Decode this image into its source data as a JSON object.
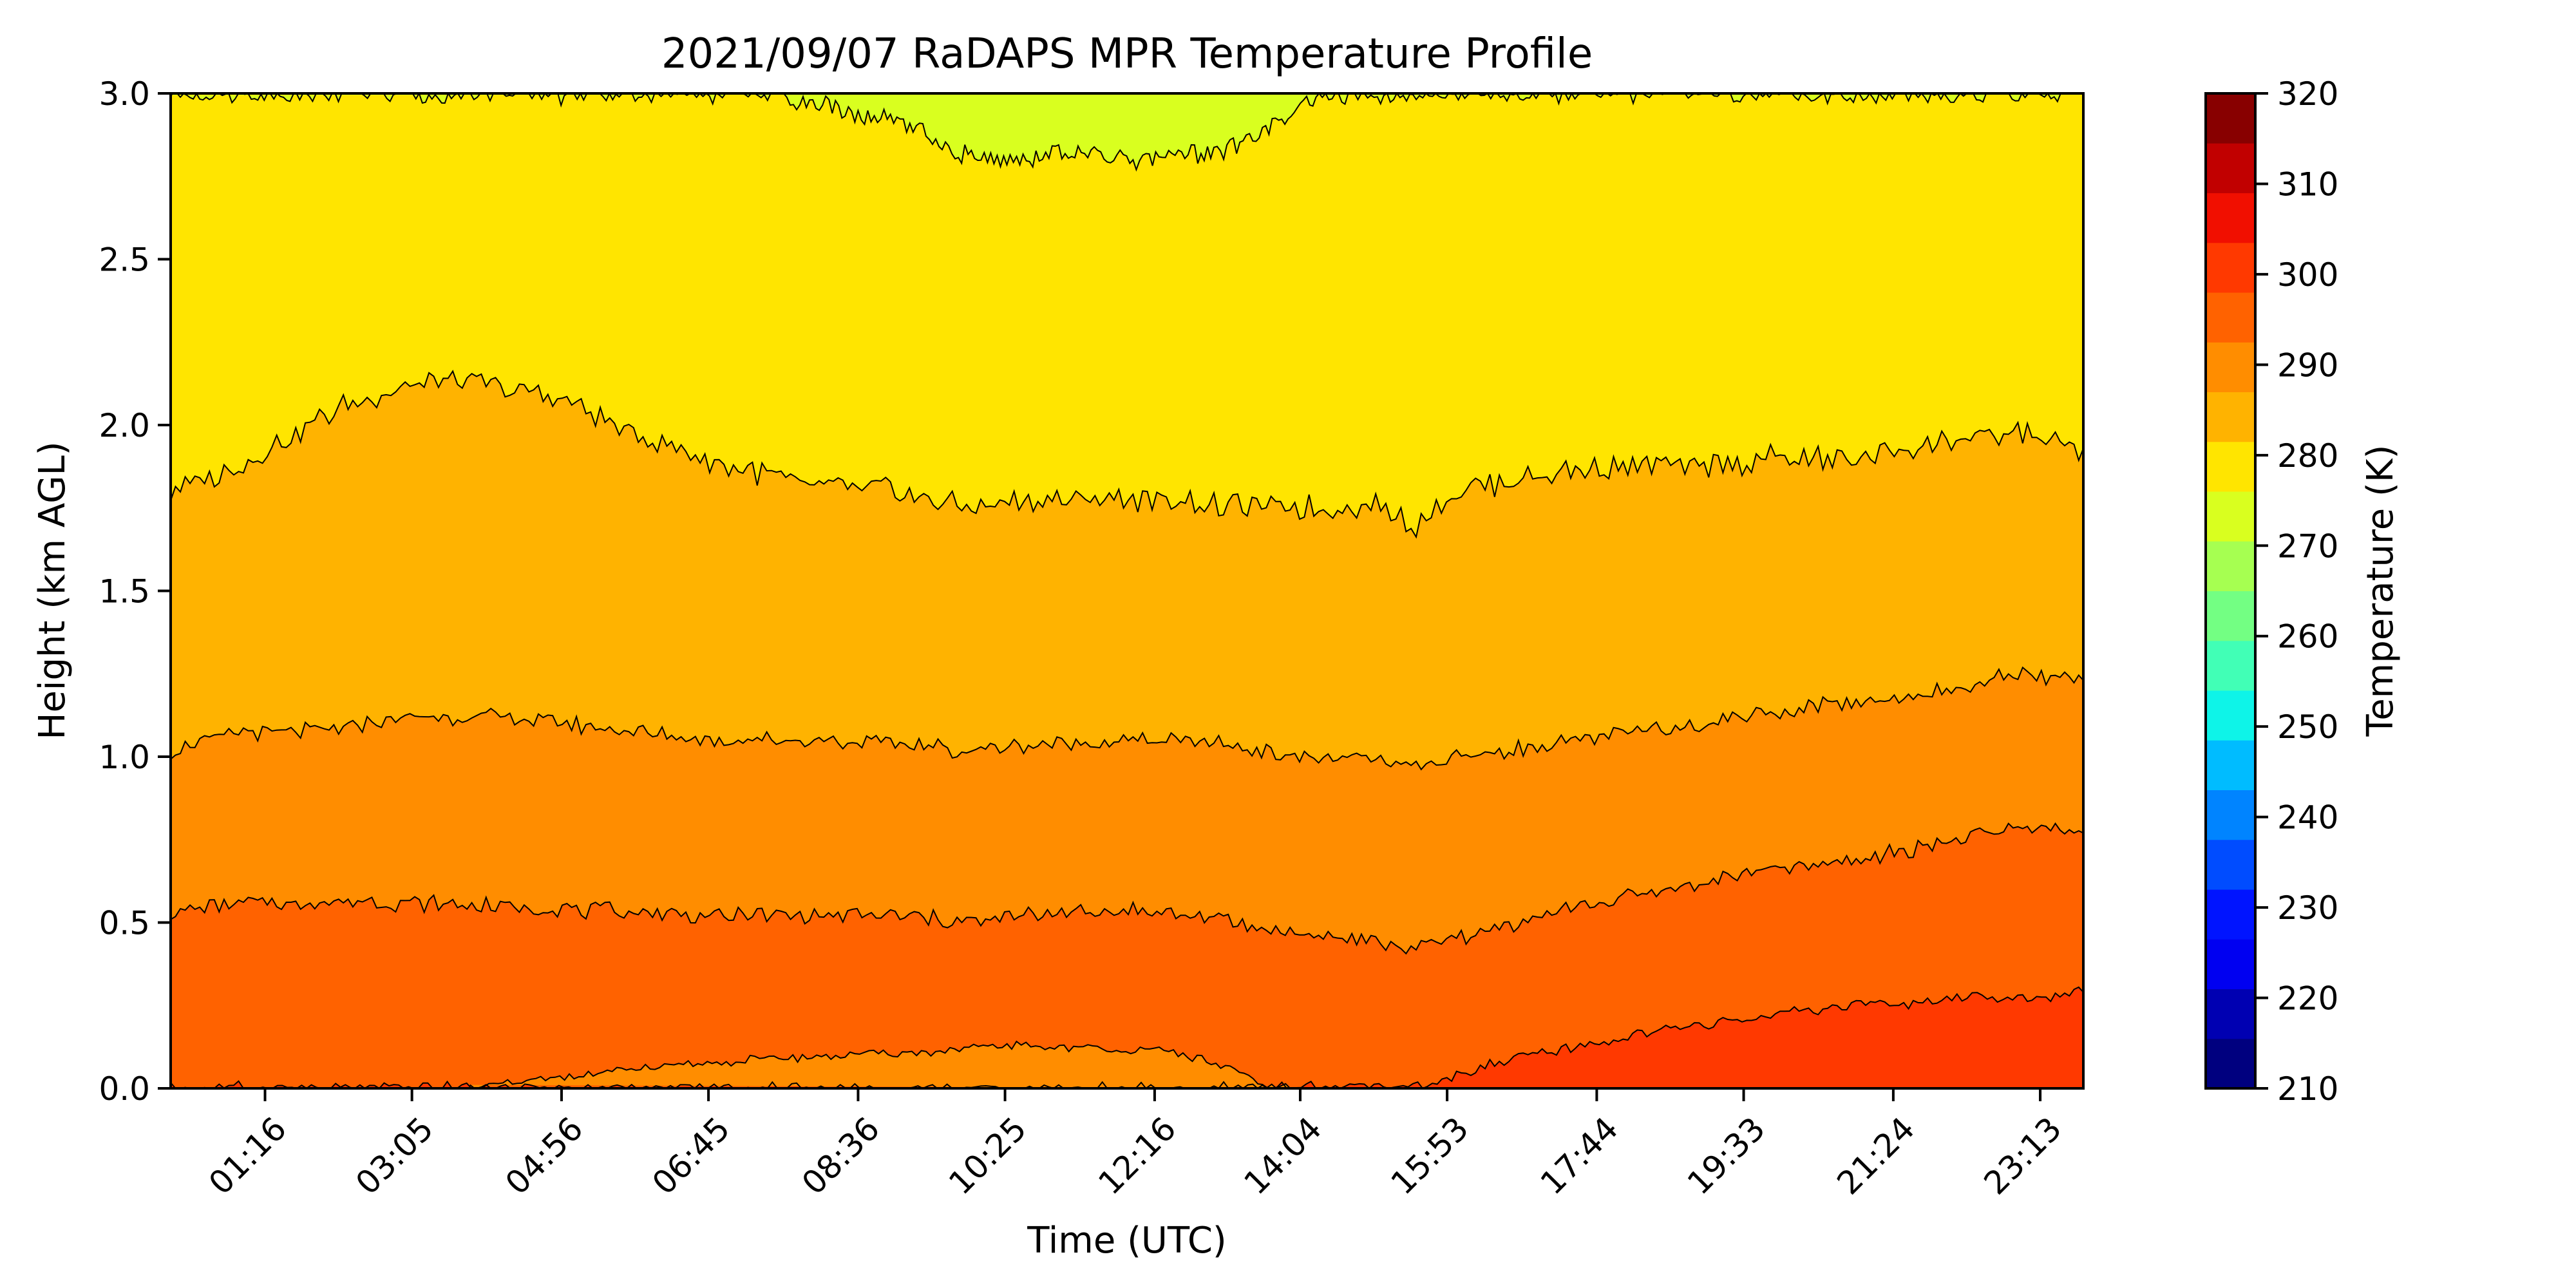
{
  "chart_data": {
    "type": "contour",
    "title": "2021/09/07 RaDAPS MPR Temperature Profile",
    "xlabel": "Time (UTC)",
    "ylabel": "Height (km AGL)",
    "x_tick_labels": [
      "01:16",
      "03:05",
      "04:56",
      "06:45",
      "08:36",
      "10:25",
      "12:16",
      "14:04",
      "15:53",
      "17:44",
      "19:33",
      "21:24",
      "23:13"
    ],
    "x_tick_hours": [
      1.2667,
      3.0833,
      4.9333,
      6.75,
      8.6,
      10.4167,
      12.2667,
      14.0667,
      15.8833,
      17.7333,
      19.55,
      21.4,
      23.2167
    ],
    "xlim_hours": [
      0.1,
      23.75
    ],
    "ylim": [
      0,
      3.0
    ],
    "y_ticks": [
      "0.0",
      "0.5",
      "1.0",
      "1.5",
      "2.0",
      "2.5",
      "3.0"
    ],
    "y_tick_values": [
      0,
      0.5,
      1.0,
      1.5,
      2.0,
      2.5,
      3.0
    ],
    "colorbar": {
      "label": "Temperature (K)",
      "range": [
        210,
        320
      ],
      "step": 5,
      "tick_values": [
        210,
        220,
        230,
        240,
        250,
        260,
        270,
        280,
        290,
        300,
        310,
        320
      ],
      "colors": [
        "#00007f",
        "#0000b2",
        "#0000f1",
        "#0014ff",
        "#004cff",
        "#0084ff",
        "#00bcff",
        "#0ef4e8",
        "#41ffb6",
        "#73ff83",
        "#a6ff51",
        "#d9ff1f",
        "#ffe500",
        "#ffb300",
        "#ff8d00",
        "#ff6200",
        "#ff3900",
        "#f10f00",
        "#c10000",
        "#880000"
      ]
    },
    "contour_levels": [
      {
        "level": 280,
        "fill_above": "#d9ff1f",
        "fill_below": "#ffe500",
        "top_boundary_height_km": [
          [
            0.1,
            3.0
          ],
          [
            7.6,
            3.0
          ],
          [
            7.8,
            2.98
          ],
          [
            8.4,
            2.95
          ],
          [
            9.2,
            2.9
          ],
          [
            9.8,
            2.82
          ],
          [
            10.4,
            2.8
          ],
          [
            11.0,
            2.82
          ],
          [
            12.0,
            2.8
          ],
          [
            13.0,
            2.82
          ],
          [
            13.8,
            2.9
          ],
          [
            14.3,
            3.0
          ],
          [
            23.75,
            3.0
          ]
        ]
      },
      {
        "level": 285,
        "height_km": [
          [
            0.1,
            1.8
          ],
          [
            1.0,
            1.88
          ],
          [
            2.0,
            2.03
          ],
          [
            3.0,
            2.12
          ],
          [
            4.0,
            2.13
          ],
          [
            5.0,
            2.07
          ],
          [
            6.0,
            1.95
          ],
          [
            7.0,
            1.88
          ],
          [
            8.0,
            1.82
          ],
          [
            9.0,
            1.8
          ],
          [
            10.0,
            1.75
          ],
          [
            11.0,
            1.78
          ],
          [
            12.0,
            1.78
          ],
          [
            13.0,
            1.76
          ],
          [
            14.0,
            1.75
          ],
          [
            15.0,
            1.76
          ],
          [
            15.5,
            1.7
          ],
          [
            16.0,
            1.8
          ],
          [
            17.0,
            1.85
          ],
          [
            18.0,
            1.88
          ],
          [
            19.0,
            1.88
          ],
          [
            20.0,
            1.9
          ],
          [
            21.0,
            1.9
          ],
          [
            22.0,
            1.95
          ],
          [
            23.0,
            1.98
          ],
          [
            23.75,
            1.93
          ]
        ]
      },
      {
        "level": 290,
        "height_km": [
          [
            0.1,
            1.02
          ],
          [
            1.0,
            1.07
          ],
          [
            2.0,
            1.08
          ],
          [
            3.0,
            1.12
          ],
          [
            4.0,
            1.12
          ],
          [
            5.0,
            1.1
          ],
          [
            6.0,
            1.07
          ],
          [
            7.0,
            1.05
          ],
          [
            8.0,
            1.05
          ],
          [
            9.0,
            1.04
          ],
          [
            10.0,
            1.02
          ],
          [
            11.0,
            1.04
          ],
          [
            12.0,
            1.05
          ],
          [
            13.0,
            1.04
          ],
          [
            14.0,
            1.0
          ],
          [
            15.0,
            0.99
          ],
          [
            15.5,
            0.96
          ],
          [
            16.0,
            1.0
          ],
          [
            17.0,
            1.03
          ],
          [
            18.0,
            1.07
          ],
          [
            19.0,
            1.1
          ],
          [
            20.0,
            1.14
          ],
          [
            21.0,
            1.17
          ],
          [
            22.0,
            1.2
          ],
          [
            23.0,
            1.25
          ],
          [
            23.75,
            1.23
          ]
        ]
      },
      {
        "level": 295,
        "height_km": [
          [
            0.1,
            0.53
          ],
          [
            1.0,
            0.56
          ],
          [
            2.0,
            0.56
          ],
          [
            3.0,
            0.56
          ],
          [
            4.0,
            0.55
          ],
          [
            5.0,
            0.54
          ],
          [
            6.0,
            0.53
          ],
          [
            7.0,
            0.52
          ],
          [
            8.0,
            0.52
          ],
          [
            9.0,
            0.52
          ],
          [
            10.0,
            0.5
          ],
          [
            11.0,
            0.53
          ],
          [
            12.0,
            0.54
          ],
          [
            13.0,
            0.51
          ],
          [
            14.0,
            0.47
          ],
          [
            15.0,
            0.44
          ],
          [
            15.5,
            0.42
          ],
          [
            16.0,
            0.45
          ],
          [
            17.0,
            0.52
          ],
          [
            18.0,
            0.57
          ],
          [
            19.0,
            0.62
          ],
          [
            20.0,
            0.66
          ],
          [
            21.0,
            0.69
          ],
          [
            22.0,
            0.74
          ],
          [
            23.0,
            0.79
          ],
          [
            23.75,
            0.77
          ]
        ]
      },
      {
        "level": 300,
        "height_km": [
          [
            0.1,
            0.0
          ],
          [
            15.7,
            0.0
          ],
          [
            16.0,
            0.04
          ],
          [
            17.0,
            0.1
          ],
          [
            18.0,
            0.15
          ],
          [
            19.0,
            0.19
          ],
          [
            20.0,
            0.22
          ],
          [
            21.0,
            0.25
          ],
          [
            22.0,
            0.26
          ],
          [
            22.5,
            0.28
          ],
          [
            23.0,
            0.27
          ],
          [
            23.75,
            0.29
          ]
        ]
      },
      {
        "level": 295,
        "note": "warm-side bump near the surface",
        "fill": "#ff8d00",
        "height_km": [
          [
            3.8,
            0.0
          ],
          [
            4.5,
            0.02
          ],
          [
            5.5,
            0.05
          ],
          [
            6.5,
            0.07
          ],
          [
            7.5,
            0.09
          ],
          [
            8.5,
            0.1
          ],
          [
            9.5,
            0.11
          ],
          [
            10.5,
            0.13
          ],
          [
            11.5,
            0.12
          ],
          [
            12.5,
            0.11
          ],
          [
            13.2,
            0.06
          ],
          [
            13.6,
            0.01
          ],
          [
            14.0,
            0.0
          ]
        ]
      }
    ],
    "band_fills": [
      "#ff3900",
      "#ff6200",
      "#ff8d00",
      "#ffb300",
      "#ffe500",
      "#d9ff1f"
    ],
    "grid": false,
    "legend": "none"
  }
}
